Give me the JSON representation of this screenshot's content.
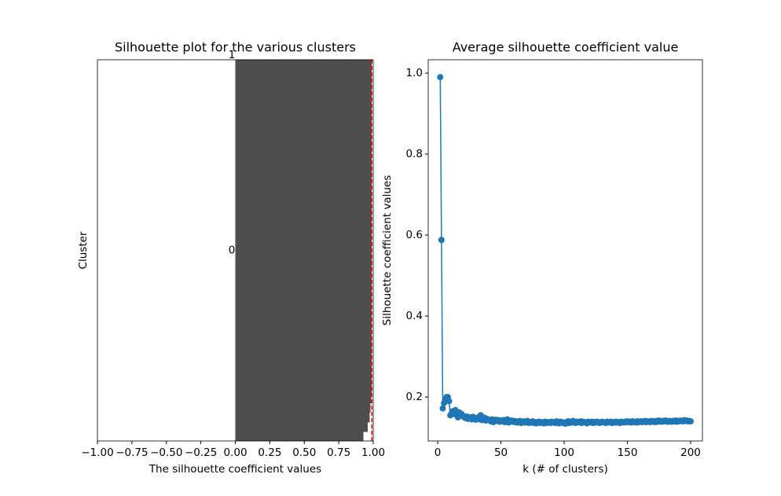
{
  "chart_data": [
    {
      "type": "silhouette",
      "title": "Silhouette plot for the various clusters",
      "xlabel": "The silhouette coefficient values",
      "ylabel": "Cluster",
      "xlim": [
        -1,
        1
      ],
      "xticks": [
        {
          "value": -1,
          "label": "−1.00"
        },
        {
          "value": -0.75,
          "label": "−0.75"
        },
        {
          "value": -0.5,
          "label": "−0.50"
        },
        {
          "value": -0.25,
          "label": "−0.25"
        },
        {
          "value": 0,
          "label": "0.00"
        },
        {
          "value": 0.25,
          "label": "0.25"
        },
        {
          "value": 0.5,
          "label": "0.50"
        },
        {
          "value": 0.75,
          "label": "0.75"
        },
        {
          "value": 1,
          "label": "1.00"
        }
      ],
      "clusters": [
        {
          "name": "0",
          "color": "#4d4d4d",
          "values": [
            0.93,
            0.96,
            0.975,
            0.98,
            0.985,
            0.988,
            0.99,
            0.99,
            0.99,
            0.99,
            0.99,
            0.99,
            0.99,
            0.99,
            0.99,
            0.99,
            0.99,
            0.99,
            0.99,
            0.99,
            0.99,
            0.99,
            0.99,
            0.99,
            0.99,
            0.99,
            0.99,
            0.99,
            0.99,
            0.99,
            0.99,
            0.99,
            0.99,
            0.99,
            0.99,
            0.99,
            0.99,
            0.99,
            0.99,
            0.99
          ]
        },
        {
          "name": "1",
          "color": "#4d4d4d",
          "values": [
            0.99
          ]
        }
      ],
      "average": 0.99,
      "average_color": "#ff0000"
    },
    {
      "type": "line",
      "title": "Average silhouette coefficient value",
      "xlabel": "k (# of clusters)",
      "ylabel": "Silhouette coefficient values",
      "xlim": [
        -7.5,
        209.3
      ],
      "ylim": [
        0.0915,
        1.033
      ],
      "xticks": [
        0,
        50,
        100,
        150,
        200
      ],
      "yticks": [
        0.2,
        0.4,
        0.6,
        0.8,
        {
          "value": 1,
          "label": "1.0"
        }
      ],
      "x": [
        2,
        3,
        4,
        5,
        6,
        7,
        8,
        9,
        10,
        11,
        12,
        13,
        14,
        15,
        16,
        17,
        18,
        19,
        20,
        21,
        22,
        23,
        24,
        25,
        26,
        27,
        28,
        29,
        30,
        31,
        32,
        33,
        34,
        35,
        36,
        37,
        38,
        39,
        40,
        41,
        42,
        43,
        44,
        45,
        46,
        47,
        48,
        49,
        50,
        51,
        52,
        53,
        54,
        55,
        56,
        57,
        58,
        59,
        60,
        61,
        62,
        63,
        64,
        65,
        66,
        67,
        68,
        69,
        70,
        71,
        72,
        73,
        74,
        75,
        76,
        77,
        78,
        79,
        80,
        81,
        82,
        83,
        84,
        85,
        86,
        87,
        88,
        89,
        90,
        91,
        92,
        93,
        94,
        95,
        96,
        97,
        98,
        99,
        100,
        101,
        102,
        103,
        104,
        105,
        106,
        107,
        108,
        109,
        110,
        111,
        112,
        113,
        114,
        115,
        116,
        117,
        118,
        119,
        120,
        121,
        122,
        123,
        124,
        125,
        126,
        127,
        128,
        129,
        130,
        131,
        132,
        133,
        134,
        135,
        136,
        137,
        138,
        139,
        140,
        141,
        142,
        143,
        144,
        145,
        146,
        147,
        148,
        149,
        150,
        151,
        152,
        153,
        154,
        155,
        156,
        157,
        158,
        159,
        160,
        161,
        162,
        163,
        164,
        165,
        166,
        167,
        168,
        169,
        170,
        171,
        172,
        173,
        174,
        175,
        176,
        177,
        178,
        179,
        180,
        181,
        182,
        183,
        184,
        185,
        186,
        187,
        188,
        189,
        190,
        191,
        192,
        193,
        194,
        195,
        196,
        197,
        198,
        199,
        200
      ],
      "series": [
        {
          "name": "Average silhouette",
          "color": "#1f77b4",
          "values": [
            0.99,
            0.588,
            0.172,
            0.185,
            0.195,
            0.2,
            0.2,
            0.19,
            0.155,
            0.16,
            0.165,
            0.158,
            0.168,
            0.16,
            0.15,
            0.162,
            0.155,
            0.158,
            0.153,
            0.15,
            0.148,
            0.152,
            0.146,
            0.149,
            0.15,
            0.145,
            0.151,
            0.147,
            0.144,
            0.148,
            0.15,
            0.145,
            0.155,
            0.143,
            0.147,
            0.149,
            0.142,
            0.146,
            0.144,
            0.143,
            0.14,
            0.145,
            0.138,
            0.142,
            0.144,
            0.141,
            0.143,
            0.139,
            0.142,
            0.14,
            0.143,
            0.138,
            0.141,
            0.145,
            0.137,
            0.14,
            0.142,
            0.139,
            0.141,
            0.138,
            0.14,
            0.137,
            0.139,
            0.141,
            0.136,
            0.138,
            0.14,
            0.137,
            0.139,
            0.141,
            0.136,
            0.138,
            0.137,
            0.14,
            0.136,
            0.138,
            0.135,
            0.137,
            0.139,
            0.136,
            0.138,
            0.137,
            0.135,
            0.139,
            0.136,
            0.138,
            0.137,
            0.136,
            0.139,
            0.137,
            0.138,
            0.136,
            0.14,
            0.137,
            0.135,
            0.139,
            0.138,
            0.136,
            0.137,
            0.134,
            0.138,
            0.14,
            0.136,
            0.139,
            0.137,
            0.141,
            0.138,
            0.136,
            0.139,
            0.138,
            0.137,
            0.14,
            0.136,
            0.139,
            0.138,
            0.137,
            0.135,
            0.139,
            0.138,
            0.137,
            0.139,
            0.136,
            0.138,
            0.137,
            0.139,
            0.138,
            0.136,
            0.137,
            0.139,
            0.138,
            0.137,
            0.136,
            0.139,
            0.138,
            0.137,
            0.139,
            0.136,
            0.138,
            0.137,
            0.139,
            0.137,
            0.138,
            0.136,
            0.139,
            0.138,
            0.137,
            0.139,
            0.138,
            0.14,
            0.138,
            0.139,
            0.137,
            0.14,
            0.138,
            0.139,
            0.137,
            0.14,
            0.138,
            0.139,
            0.14,
            0.138,
            0.139,
            0.141,
            0.138,
            0.14,
            0.139,
            0.138,
            0.141,
            0.139,
            0.14,
            0.138,
            0.141,
            0.139,
            0.142,
            0.14,
            0.139,
            0.141,
            0.14,
            0.142,
            0.14,
            0.139,
            0.141,
            0.14,
            0.139,
            0.141,
            0.14,
            0.142,
            0.139,
            0.141,
            0.14,
            0.142,
            0.141,
            0.14,
            0.143,
            0.141,
            0.142,
            0.14,
            0.141,
            0.14
          ]
        }
      ]
    }
  ]
}
